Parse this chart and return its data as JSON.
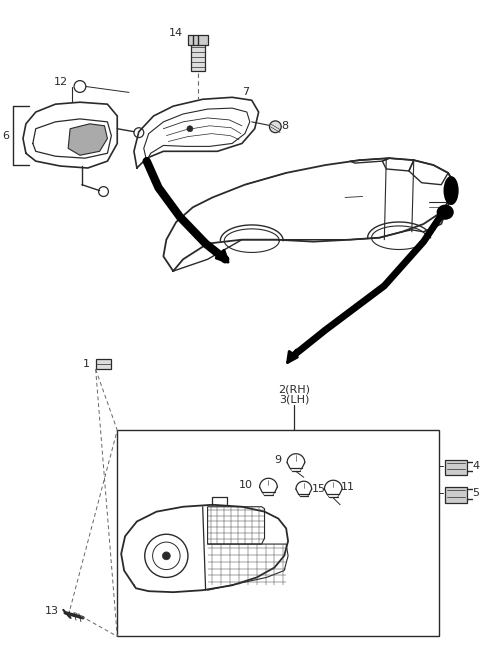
{
  "bg_color": "#ffffff",
  "line_color": "#2a2a2a",
  "dashed_color": "#666666",
  "fig_width": 4.8,
  "fig_height": 6.61,
  "dpi": 100
}
